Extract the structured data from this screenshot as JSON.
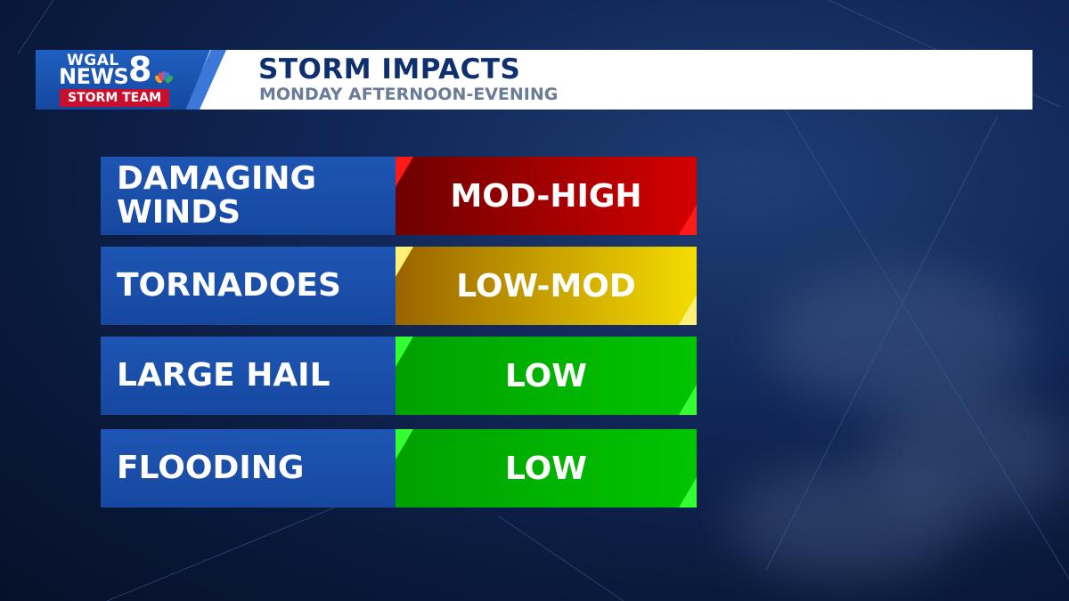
{
  "logo": {
    "line1": "WGAL",
    "line2": "NEWS",
    "number": "8",
    "team": "STORM TEAM"
  },
  "header": {
    "title": "STORM IMPACTS",
    "subtitle": "MONDAY AFTERNOON-EVENING"
  },
  "impacts": [
    {
      "hazard": "DAMAGING\nWINDS",
      "level": "MOD-HIGH",
      "color_start": "#6e0000",
      "color_end": "#d40000",
      "accent": "#ff1a1a"
    },
    {
      "hazard": "TORNADOES",
      "level": "LOW-MOD",
      "color_start": "#9a6400",
      "color_end": "#f4dc00",
      "accent": "#fff07a"
    },
    {
      "hazard": "LARGE HAIL",
      "level": "LOW",
      "color_start": "#00a000",
      "color_end": "#00c400",
      "accent": "#33ff33"
    },
    {
      "hazard": "FLOODING",
      "level": "LOW",
      "color_start": "#00a000",
      "color_end": "#00c400",
      "accent": "#33ff33"
    }
  ]
}
